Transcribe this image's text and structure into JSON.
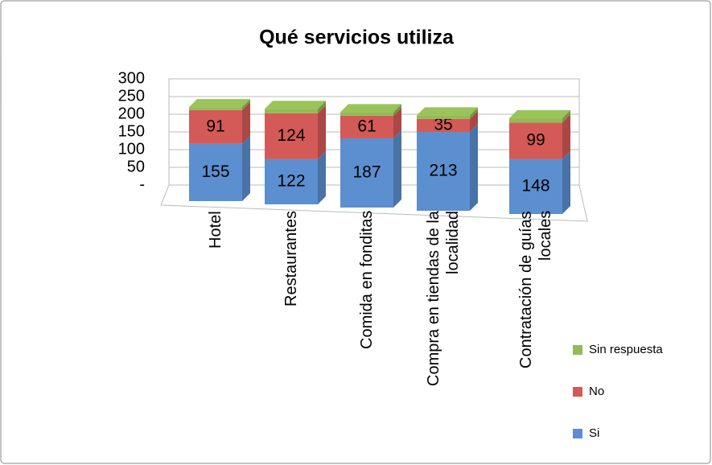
{
  "chart_data": {
    "type": "bar3d-stacked",
    "title": "Qué servicios utiliza",
    "categories": [
      "Hotel",
      "Restaurantes",
      "Comida en fonditas",
      "Compra en tiendas de la localidad",
      "Contratación de guías locales"
    ],
    "series": [
      {
        "name": "Si",
        "color": "#5b8fd0",
        "values": [
          155,
          122,
          187,
          213,
          148
        ]
      },
      {
        "name": "No",
        "color": "#d35a57",
        "values": [
          91,
          124,
          61,
          35,
          99
        ]
      },
      {
        "name": "Sin respuesta",
        "color": "#93bb55",
        "values": [
          8,
          12,
          10,
          10,
          12
        ]
      }
    ],
    "ylim": [
      0,
      300
    ],
    "yticks": [
      {
        "value": 0,
        "label": "-"
      },
      50,
      100,
      150,
      200,
      250,
      300
    ],
    "grid": true
  }
}
